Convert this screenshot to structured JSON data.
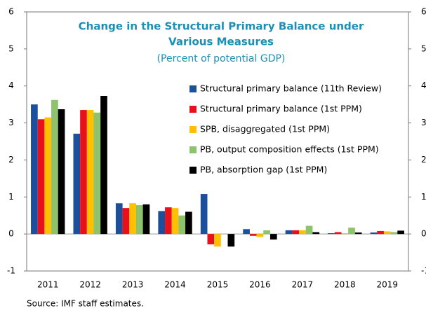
{
  "chart_data": {
    "type": "bar",
    "title": [
      "Change in the Structural Primary Balance under",
      "Various Measures"
    ],
    "subtitle": "(Percent of potential GDP)",
    "source": "Source: IMF staff estimates.",
    "categories": [
      "2011",
      "2012",
      "2013",
      "2014",
      "2015",
      "2016",
      "2017",
      "2018",
      "2019"
    ],
    "series": [
      {
        "name": "Structural primary balance (11th Review)",
        "color": "#1c4f9c",
        "values": [
          3.5,
          2.71,
          0.83,
          0.62,
          1.08,
          0.13,
          0.1,
          0.02,
          0.04
        ]
      },
      {
        "name": "Structural primary balance (1st PPM)",
        "color": "#e8101a",
        "values": [
          3.1,
          3.35,
          0.7,
          0.72,
          -0.28,
          -0.05,
          0.1,
          0.05,
          0.08
        ]
      },
      {
        "name": "SPB, disaggregated (1st PPM)",
        "color": "#ffc000",
        "values": [
          3.15,
          3.35,
          0.83,
          0.7,
          -0.34,
          -0.08,
          0.1,
          0.02,
          0.07
        ]
      },
      {
        "name": "PB, output composition effects (1st PPM)",
        "color": "#8cc36c",
        "values": [
          3.62,
          3.28,
          0.78,
          0.5,
          0,
          0.1,
          0.22,
          0.17,
          0.05
        ]
      },
      {
        "name": "PB, absorption gap (1st PPM)",
        "color": "#000000",
        "values": [
          3.37,
          3.73,
          0.8,
          0.6,
          -0.34,
          -0.15,
          0.05,
          0.04,
          0.09
        ]
      }
    ],
    "ylim": [
      -1,
      6
    ],
    "yticks": [
      -1,
      0,
      1,
      2,
      3,
      4,
      5,
      6
    ]
  }
}
